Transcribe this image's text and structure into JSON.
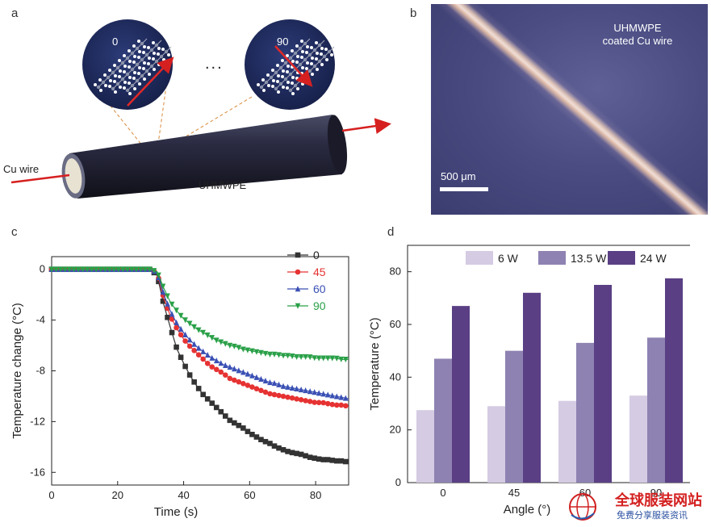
{
  "panel_a": {
    "label": "a",
    "left_angle": "0",
    "right_angle": "90",
    "ellipsis": "...",
    "wire_label": "Cu wire",
    "coating_label": "UHMWPE",
    "colors": {
      "arrow": "#d62020",
      "cylinder": "#23243a",
      "zoom_bg": "#1d2a5a"
    }
  },
  "panel_b": {
    "label": "b",
    "caption_line1": "UHMWPE",
    "caption_line2": "coated Cu wire",
    "scale_bar": "500 μm"
  },
  "panel_c": {
    "label": "c",
    "chart_data": {
      "type": "line",
      "xlabel": "Time (s)",
      "ylabel": "Temperature change (°C)",
      "xlim": [
        0,
        90
      ],
      "ylim": [
        -17,
        1
      ],
      "xticks": [
        0,
        20,
        40,
        60,
        80
      ],
      "yticks": [
        0,
        -4,
        -8,
        -12,
        -16
      ],
      "legend_position": "top-right",
      "series": [
        {
          "name": "0",
          "color": "#333333",
          "marker": "square",
          "x": [
            0,
            10,
            20,
            30,
            32,
            34,
            36,
            38,
            40,
            42,
            44,
            46,
            48,
            50,
            52,
            54,
            56,
            58,
            60,
            62,
            64,
            66,
            68,
            70,
            72,
            74,
            76,
            78,
            80,
            82,
            84,
            86,
            88,
            90
          ],
          "y": [
            0,
            0,
            0,
            0,
            -0.5,
            -2.8,
            -4.6,
            -6.3,
            -7.4,
            -8.4,
            -9.2,
            -9.9,
            -10.4,
            -10.9,
            -11.4,
            -11.9,
            -12.2,
            -12.5,
            -12.9,
            -13.2,
            -13.5,
            -13.7,
            -14.0,
            -14.2,
            -14.4,
            -14.5,
            -14.6,
            -14.8,
            -14.9,
            -15.0,
            -15.0,
            -15.1,
            -15.1,
            -15.2
          ]
        },
        {
          "name": "45",
          "color": "#e63232",
          "marker": "circle",
          "x": [
            0,
            10,
            20,
            30,
            32,
            34,
            36,
            38,
            40,
            42,
            44,
            46,
            48,
            50,
            52,
            54,
            56,
            58,
            60,
            62,
            64,
            66,
            68,
            70,
            72,
            74,
            76,
            78,
            80,
            82,
            84,
            86,
            88,
            90
          ],
          "y": [
            0,
            0,
            0,
            0,
            -0.3,
            -2.3,
            -3.7,
            -4.7,
            -5.5,
            -6.1,
            -6.6,
            -7.1,
            -7.6,
            -7.9,
            -8.2,
            -8.6,
            -8.8,
            -9.0,
            -9.2,
            -9.4,
            -9.6,
            -9.8,
            -9.9,
            -10.0,
            -10.1,
            -10.2,
            -10.3,
            -10.4,
            -10.5,
            -10.5,
            -10.6,
            -10.7,
            -10.7,
            -10.8
          ]
        },
        {
          "name": "60",
          "color": "#3a50b4",
          "marker": "triangle-up",
          "x": [
            0,
            10,
            20,
            30,
            32,
            34,
            36,
            38,
            40,
            42,
            44,
            46,
            48,
            50,
            52,
            54,
            56,
            58,
            60,
            62,
            64,
            66,
            68,
            70,
            72,
            74,
            76,
            78,
            80,
            82,
            84,
            86,
            88,
            90
          ],
          "y": [
            0,
            0,
            0,
            0,
            -0.3,
            -2.0,
            -3.3,
            -4.3,
            -5.0,
            -5.6,
            -6.1,
            -6.5,
            -6.9,
            -7.2,
            -7.5,
            -7.7,
            -7.9,
            -8.1,
            -8.3,
            -8.5,
            -8.7,
            -8.9,
            -9.0,
            -9.2,
            -9.3,
            -9.4,
            -9.5,
            -9.6,
            -9.7,
            -9.8,
            -9.9,
            -10.0,
            -10.1,
            -10.2
          ]
        },
        {
          "name": "90",
          "color": "#2aa048",
          "marker": "triangle-down",
          "x": [
            0,
            10,
            20,
            30,
            32,
            34,
            36,
            38,
            40,
            42,
            44,
            46,
            48,
            50,
            52,
            54,
            56,
            58,
            60,
            62,
            64,
            66,
            68,
            70,
            72,
            74,
            76,
            78,
            80,
            82,
            84,
            86,
            88,
            90
          ],
          "y": [
            0,
            0,
            0,
            0,
            -0.2,
            -1.5,
            -2.6,
            -3.3,
            -3.9,
            -4.3,
            -4.7,
            -5.0,
            -5.3,
            -5.6,
            -5.8,
            -6.0,
            -6.1,
            -6.3,
            -6.4,
            -6.5,
            -6.6,
            -6.7,
            -6.7,
            -6.8,
            -6.8,
            -6.9,
            -6.9,
            -6.9,
            -7.0,
            -7.0,
            -7.0,
            -7.0,
            -7.1,
            -7.1
          ]
        }
      ]
    }
  },
  "panel_d": {
    "label": "d",
    "chart_data": {
      "type": "bar",
      "xlabel": "Angle (°)",
      "ylabel": "Temperature (°C)",
      "categories": [
        "0",
        "45",
        "60",
        "90"
      ],
      "ylim": [
        0,
        90
      ],
      "yticks": [
        0,
        20,
        40,
        60,
        80
      ],
      "legend_position": "top",
      "series": [
        {
          "name": "6 W",
          "color": "#d5cbe3",
          "values": [
            27.5,
            29,
            31,
            33
          ]
        },
        {
          "name": "13.5 W",
          "color": "#8e82b2",
          "values": [
            47,
            50,
            53,
            55
          ]
        },
        {
          "name": "24 W",
          "color": "#5a3f85",
          "values": [
            67,
            72,
            75,
            77.5
          ]
        }
      ]
    }
  },
  "watermark": {
    "line1": "全球服装网站",
    "line2": "免费分享服装资讯"
  }
}
